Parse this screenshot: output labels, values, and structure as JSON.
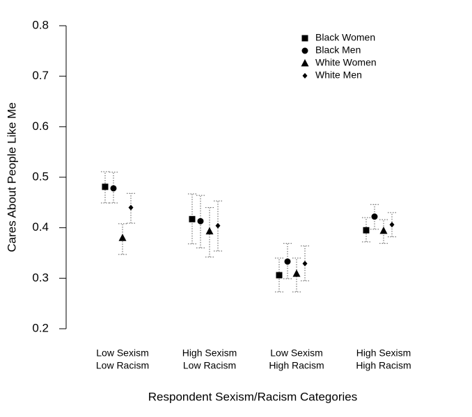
{
  "chart_data": {
    "type": "point",
    "ylabel": "Cares About People Like Me",
    "xlabel": "Respondent Sexism/Racism Categories",
    "categories": [
      [
        "Low Sexism",
        "Low Racism"
      ],
      [
        "High Sexism",
        "Low Racism"
      ],
      [
        "Low Sexism",
        "High Racism"
      ],
      [
        "High Sexism",
        "High Racism"
      ]
    ],
    "ylim": [
      0.2,
      0.8
    ],
    "yticks": [
      0.2,
      0.3,
      0.4,
      0.5,
      0.6,
      0.7,
      0.8
    ],
    "legend": "upper right",
    "series": [
      {
        "name": "Black Women",
        "marker": "square",
        "color": "#000000",
        "values": [
          0.481,
          0.417,
          0.306,
          0.395
        ],
        "lower": [
          0.449,
          0.368,
          0.273,
          0.372
        ],
        "upper": [
          0.511,
          0.467,
          0.34,
          0.42
        ]
      },
      {
        "name": "Black Men",
        "marker": "circle",
        "color": "#000000",
        "values": [
          0.478,
          0.413,
          0.333,
          0.422
        ],
        "lower": [
          0.449,
          0.36,
          0.299,
          0.397
        ],
        "upper": [
          0.51,
          0.464,
          0.369,
          0.446
        ]
      },
      {
        "name": "White Women",
        "marker": "triangle",
        "color": "#000000",
        "values": [
          0.38,
          0.393,
          0.309,
          0.394
        ],
        "lower": [
          0.347,
          0.342,
          0.273,
          0.369
        ],
        "upper": [
          0.408,
          0.44,
          0.34,
          0.416
        ]
      },
      {
        "name": "White Men",
        "marker": "diamond",
        "color": "#000000",
        "values": [
          0.44,
          0.404,
          0.329,
          0.406
        ],
        "lower": [
          0.409,
          0.354,
          0.295,
          0.382
        ],
        "upper": [
          0.468,
          0.453,
          0.364,
          0.43
        ]
      }
    ]
  }
}
